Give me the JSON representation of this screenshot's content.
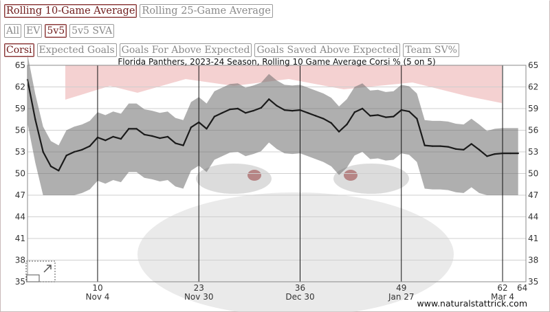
{
  "windows": {
    "buttons": [
      {
        "label": "Rolling 10-Game Average",
        "active": true
      },
      {
        "label": "Rolling 25-Game Average",
        "active": false
      }
    ]
  },
  "strengths": {
    "buttons": [
      {
        "label": "All",
        "active": false
      },
      {
        "label": "EV",
        "active": false
      },
      {
        "label": "5v5",
        "active": true
      },
      {
        "label": "5v5 SVA",
        "active": false
      }
    ]
  },
  "metrics": {
    "buttons": [
      {
        "label": "Corsi",
        "active": true
      },
      {
        "label": "Expected Goals",
        "active": false
      },
      {
        "label": "Goals For Above Expected",
        "active": false
      },
      {
        "label": "Goals Saved Above Expected",
        "active": false
      },
      {
        "label": "Team SV%",
        "active": false
      }
    ]
  },
  "chart_data": {
    "type": "line",
    "title": "Florida Panthers, 2023-24 Season, Rolling 10 Game Average Corsi % (5 on 5)",
    "watermark": "www.naturalstattrick.com",
    "ylim": [
      35,
      65
    ],
    "yticks": [
      35,
      38,
      41,
      44,
      47,
      50,
      53,
      56,
      59,
      62,
      65
    ],
    "xlim": [
      1,
      65
    ],
    "xticks": [
      {
        "game": 10,
        "label": "10",
        "date": "Nov 4"
      },
      {
        "game": 23,
        "label": "23",
        "date": "Nov 30"
      },
      {
        "game": 36,
        "label": "36",
        "date": "Dec 30"
      },
      {
        "game": 49,
        "label": "49",
        "date": "Jan 27"
      },
      {
        "game": 62,
        "label": "62",
        "date": "Mar 4"
      },
      {
        "game": 64,
        "label": "64",
        "date": ""
      }
    ],
    "colors": {
      "line": "#1a1a1a",
      "band": "#6e6e6e",
      "grid": "#cfcfcf",
      "crest": "#f3cccc"
    },
    "series": [
      {
        "games": [
          1,
          2,
          3,
          4,
          5,
          6,
          7,
          8,
          9,
          10,
          11,
          12,
          13,
          14,
          15,
          16,
          17,
          18,
          19,
          20,
          21,
          22,
          23,
          24,
          25,
          26,
          27,
          28,
          29,
          30,
          31,
          32,
          33,
          34,
          35,
          36,
          37,
          38,
          39,
          40,
          41,
          42,
          43,
          44,
          45,
          46,
          47,
          48,
          49,
          50,
          51,
          52,
          53,
          54,
          55,
          56,
          57,
          58,
          59,
          60,
          61,
          62,
          63,
          64
        ],
        "values": [
          63,
          57.5,
          53,
          51,
          50.4,
          52.5,
          53,
          53.3,
          53.8,
          55,
          54.6,
          55.1,
          54.8,
          56.2,
          56.2,
          55.4,
          55.2,
          54.9,
          55.1,
          54.2,
          53.9,
          56.4,
          57.1,
          56.2,
          57.9,
          58.4,
          58.9,
          59.0,
          58.4,
          58.7,
          59.1,
          60.3,
          59.4,
          58.8,
          58.7,
          58.8,
          58.4,
          58.0,
          57.6,
          57.0,
          55.8,
          56.8,
          58.5,
          59.0,
          58.0,
          58.1,
          57.8,
          57.9,
          58.8,
          58.6,
          57.6,
          53.9,
          53.8,
          53.8,
          53.7,
          53.4,
          53.3,
          54.1,
          53.3,
          52.4,
          52.7,
          52.8,
          52.8,
          52.8
        ]
      }
    ],
    "grid": true
  }
}
